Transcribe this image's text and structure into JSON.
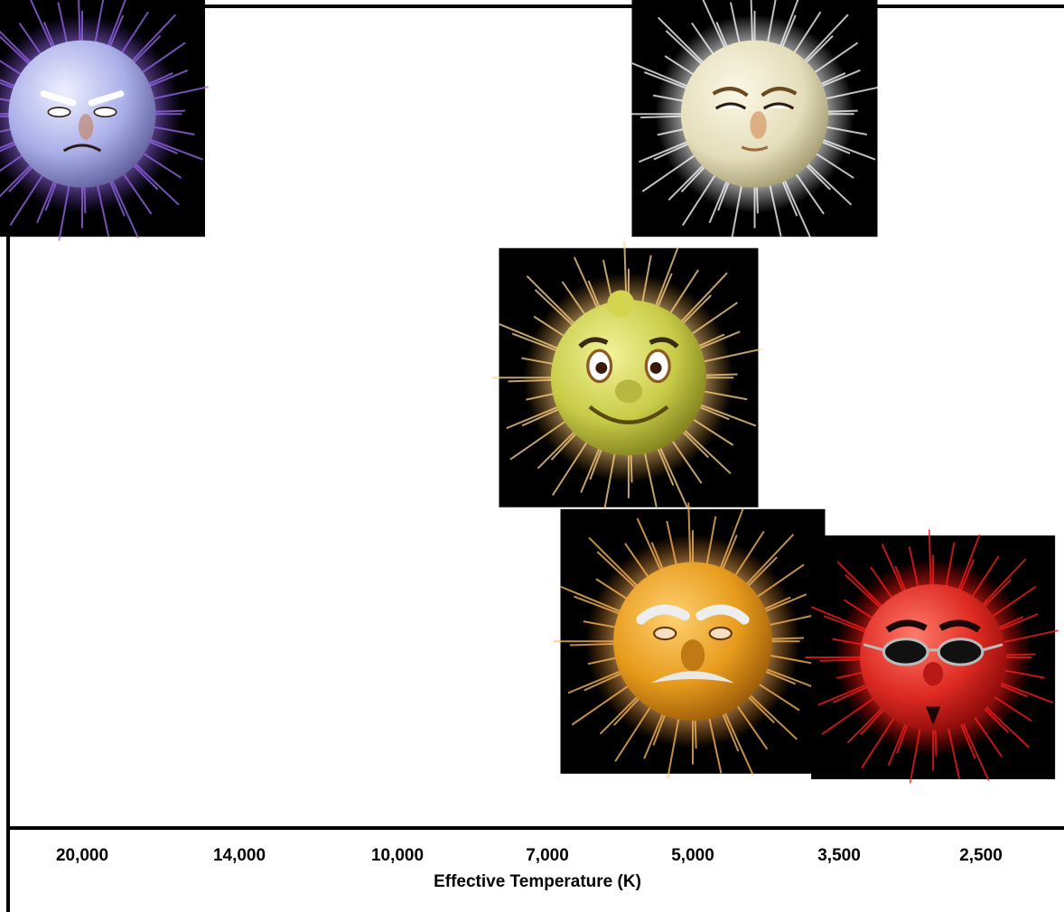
{
  "chart_data": {
    "type": "scatter",
    "xlabel": "Effective Temperature (K)",
    "ylabel": "",
    "x_scale": "log-reversed",
    "xlim": [
      25000,
      2000
    ],
    "xticks": [
      "20,000",
      "14,000",
      "10,000",
      "7,000",
      "5,000",
      "3,500",
      "2,500"
    ],
    "xtick_values": [
      20000,
      14000,
      10000,
      7000,
      5000,
      3500,
      2500
    ],
    "grid": false,
    "legend": "none",
    "points": [
      {
        "x": 20000,
        "y": 0.88,
        "color": "#9a9ee6",
        "glow": "#9b6cf0",
        "icon": "blue-star-face-icon"
      },
      {
        "x": 4300,
        "y": 0.88,
        "color": "#e7e2c2",
        "glow": "#ffffff",
        "icon": "white-star-face-icon"
      },
      {
        "x": 5800,
        "y": 0.55,
        "color": "#c8cc48",
        "glow": "#ffd890",
        "icon": "yellow-star-face-icon"
      },
      {
        "x": 5000,
        "y": 0.22,
        "color": "#e8a020",
        "glow": "#ffc060",
        "icon": "orange-star-face-icon"
      },
      {
        "x": 2800,
        "y": 0.2,
        "color": "#e02828",
        "glow": "#ff2020",
        "icon": "red-star-face-icon"
      }
    ]
  }
}
